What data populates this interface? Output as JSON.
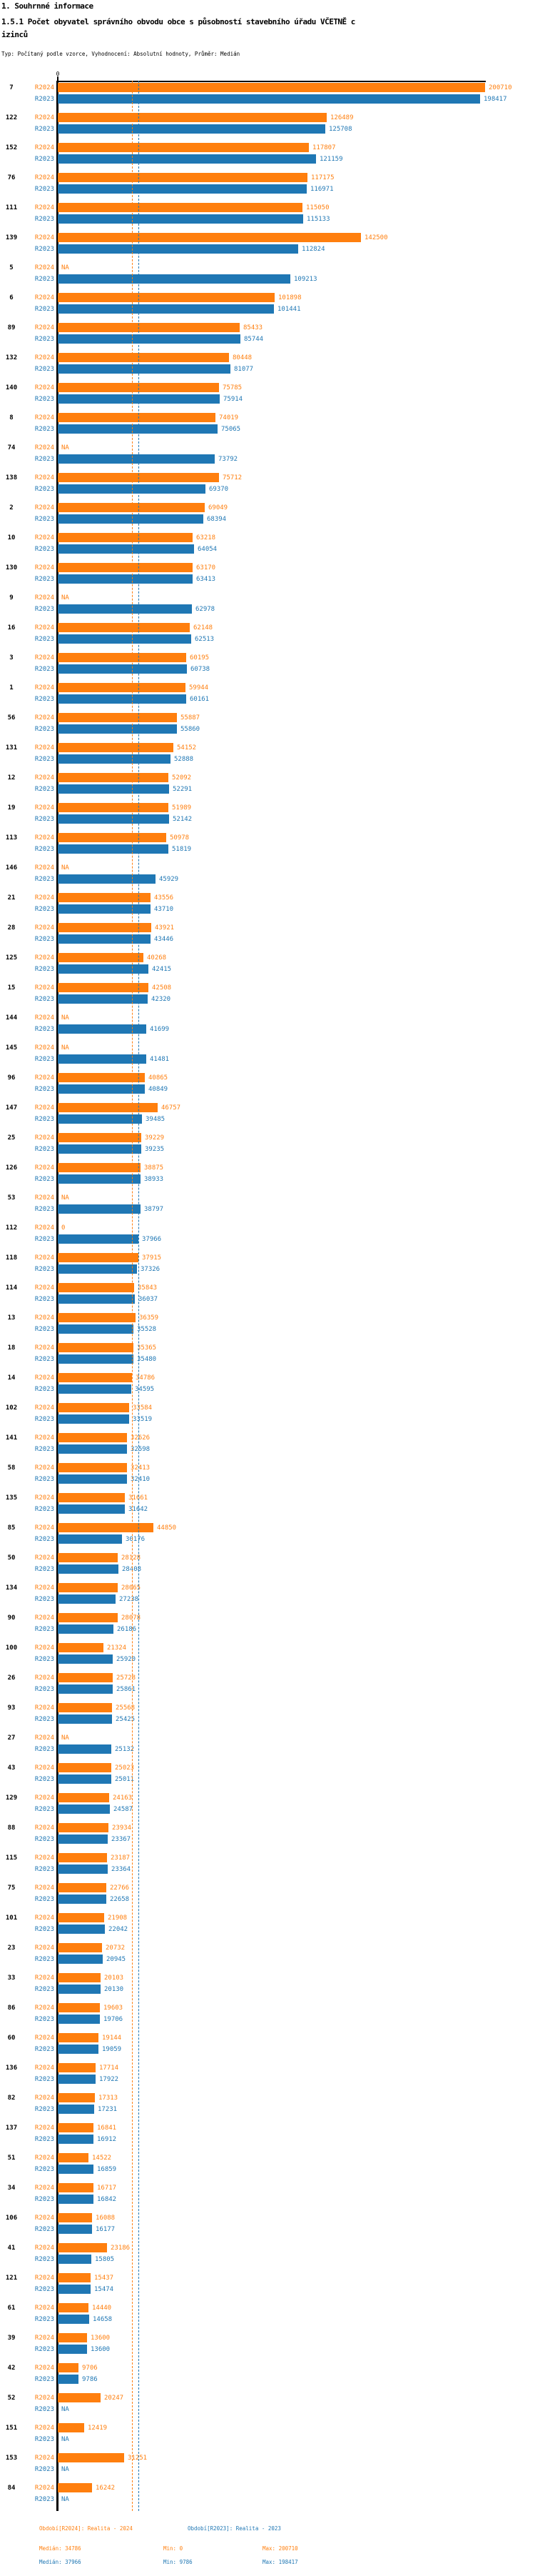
{
  "header": {
    "line1": "1. Souhrnné informace",
    "line2": "1.5.1 Počet obyvatel správního obvodu obce s působností stavebního úřadu VČETNĚ c",
    "line3": "izinců",
    "meta": "Typ: Počítaný podle vzorce, Vyhodnocení: Absolutní hodnoty, Průměr: Medián"
  },
  "axis": {
    "zero_label": "0"
  },
  "chart_data": {
    "type": "bar",
    "orientation": "horizontal",
    "na_text": "NA",
    "value_axis": {
      "min": 0,
      "tick_labels": [
        "0"
      ]
    },
    "categories": [
      "7",
      "122",
      "152",
      "76",
      "111",
      "139",
      "5",
      "6",
      "89",
      "132",
      "140",
      "8",
      "74",
      "138",
      "2",
      "10",
      "130",
      "9",
      "16",
      "3",
      "1",
      "56",
      "131",
      "12",
      "19",
      "113",
      "146",
      "21",
      "28",
      "125",
      "15",
      "144",
      "145",
      "96",
      "147",
      "25",
      "126",
      "53",
      "112",
      "118",
      "114",
      "13",
      "18",
      "14",
      "102",
      "141",
      "58",
      "135",
      "85",
      "50",
      "134",
      "90",
      "100",
      "26",
      "93",
      "27",
      "43",
      "129",
      "88",
      "115",
      "75",
      "101",
      "23",
      "33",
      "86",
      "60",
      "136",
      "82",
      "137",
      "51",
      "34",
      "106",
      "41",
      "121",
      "61",
      "39",
      "42",
      "52",
      "151",
      "153",
      "84"
    ],
    "series": [
      {
        "name": "R2024",
        "color": "#ff7f0e",
        "median": 34786,
        "min": 0,
        "max": 200710,
        "values": [
          200710,
          126489,
          117807,
          117175,
          115050,
          142500,
          null,
          101898,
          85433,
          80448,
          75785,
          74019,
          null,
          75712,
          69049,
          63218,
          63170,
          null,
          62148,
          60195,
          59944,
          55887,
          54152,
          52092,
          51989,
          50978,
          null,
          43556,
          43921,
          40268,
          42508,
          null,
          null,
          40865,
          46757,
          39229,
          38875,
          null,
          0,
          37915,
          35843,
          36359,
          35365,
          34786,
          33584,
          32626,
          32413,
          31661,
          44850,
          28128,
          28065,
          28078,
          21324,
          25728,
          25568,
          null,
          25023,
          24163,
          23934,
          23187,
          22766,
          21908,
          20732,
          20103,
          19603,
          19144,
          17714,
          17313,
          16841,
          14522,
          16717,
          16088,
          23186,
          15437,
          14440,
          13600,
          9706,
          20247,
          12419,
          31251,
          16242
        ]
      },
      {
        "name": "R2023",
        "color": "#1f77b4",
        "median": 37966,
        "min": 9786,
        "max": 198417,
        "values": [
          198417,
          125708,
          121159,
          116971,
          115133,
          112824,
          109213,
          101441,
          85744,
          81077,
          75914,
          75065,
          73792,
          69370,
          68394,
          64054,
          63413,
          62978,
          62513,
          60738,
          60161,
          55860,
          52888,
          52291,
          52142,
          51819,
          45929,
          43710,
          43446,
          42415,
          42320,
          41699,
          41481,
          40849,
          39485,
          39235,
          38933,
          38797,
          37966,
          37326,
          36037,
          35528,
          35480,
          34595,
          33519,
          32598,
          32410,
          31642,
          30176,
          28408,
          27238,
          26186,
          25920,
          25861,
          25425,
          25132,
          25011,
          24587,
          23367,
          23364,
          22658,
          22042,
          20945,
          20130,
          19706,
          19059,
          17922,
          17231,
          16912,
          16859,
          16842,
          16177,
          15805,
          15474,
          14658,
          13600,
          9786,
          null,
          null,
          null,
          null
        ]
      }
    ]
  },
  "footer": {
    "series": [
      {
        "label": "Období[R2024]: Realita - 2024",
        "median": "Medián: 34786",
        "min": "Min: 0",
        "max": "Max: 200710"
      },
      {
        "label": "Období[R2023]: Realita - 2023",
        "median": "Medián: 37966",
        "min": "Min: 9786",
        "max": "Max: 198417"
      }
    ]
  }
}
